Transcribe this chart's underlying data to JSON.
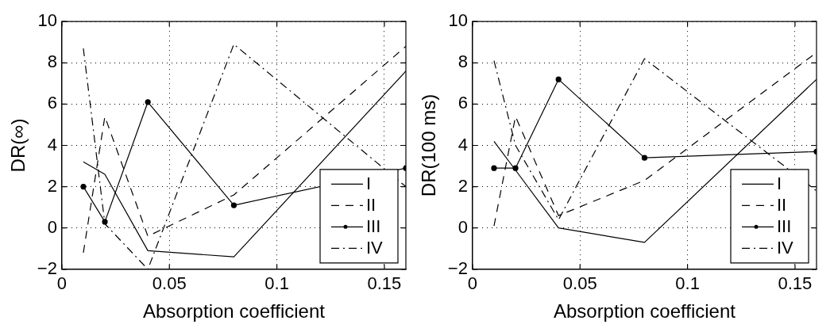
{
  "chart_data": [
    {
      "type": "line",
      "xlabel": "Absorption coefficient",
      "ylabel": "DR(∞)",
      "xlim": [
        0,
        0.16
      ],
      "xticks": [
        0,
        0.05,
        0.1,
        0.15
      ],
      "ylim": [
        -2,
        10
      ],
      "yticks": [
        -2,
        0,
        2,
        4,
        6,
        8,
        10
      ],
      "grid": true,
      "legend": "bottom right",
      "x": [
        0.01,
        0.02,
        0.04,
        0.08,
        0.16
      ],
      "series": [
        {
          "name": "I",
          "color": "#000000",
          "line_style": "solid",
          "marker": "none",
          "values": [
            3.2,
            2.6,
            -1.1,
            -1.4,
            7.6
          ]
        },
        {
          "name": "II",
          "color": "#000000",
          "line_style": "dashed",
          "marker": "none",
          "values": [
            -1.2,
            5.4,
            -0.4,
            1.6,
            8.8
          ]
        },
        {
          "name": "III",
          "color": "#000000",
          "line_style": "solid",
          "marker": "circle",
          "values": [
            2.0,
            0.3,
            6.1,
            1.1,
            2.9
          ]
        },
        {
          "name": "IV",
          "color": "#000000",
          "line_style": "dashdot",
          "marker": "none",
          "values": [
            8.7,
            0.2,
            -2,
            8.9,
            2.0
          ]
        }
      ]
    },
    {
      "type": "line",
      "xlabel": "Absorption coefficient",
      "ylabel": "DR(100 ms)",
      "xlim": [
        0,
        0.16
      ],
      "xticks": [
        0,
        0.05,
        0.1,
        0.15
      ],
      "ylim": [
        -2,
        10
      ],
      "yticks": [
        -2,
        0,
        2,
        4,
        6,
        8,
        10
      ],
      "grid": true,
      "legend": "bottom right",
      "x": [
        0.01,
        0.02,
        0.04,
        0.08,
        0.16
      ],
      "series": [
        {
          "name": "I",
          "color": "#000000",
          "line_style": "solid",
          "marker": "none",
          "values": [
            4.2,
            2.8,
            0,
            -0.7,
            7.2
          ]
        },
        {
          "name": "II",
          "color": "#000000",
          "line_style": "dashed",
          "marker": "none",
          "values": [
            0.1,
            5.4,
            0.6,
            2.3,
            8.5
          ]
        },
        {
          "name": "III",
          "color": "#000000",
          "line_style": "solid",
          "marker": "circle",
          "values": [
            2.9,
            2.9,
            7.2,
            3.4,
            3.7
          ]
        },
        {
          "name": "IV",
          "color": "#000000",
          "line_style": "dashdot",
          "marker": "none",
          "values": [
            8.1,
            4.0,
            0.4,
            8.2,
            1.8
          ]
        }
      ]
    }
  ]
}
